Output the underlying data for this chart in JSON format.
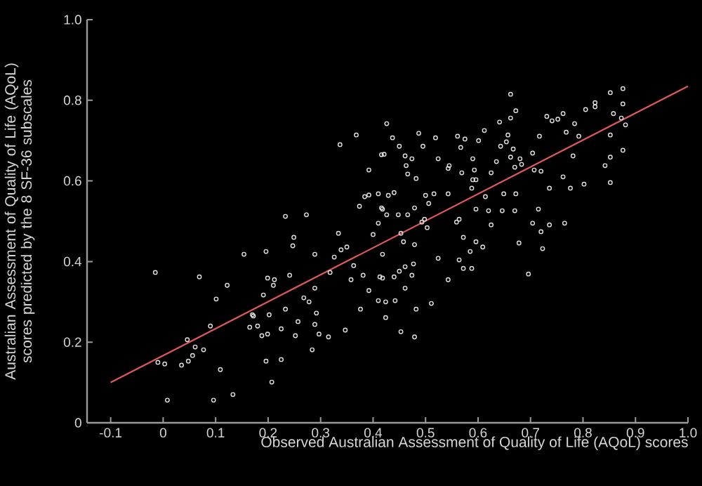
{
  "chart_data": {
    "type": "scatter",
    "xlabel": "Observed Australian Assessment of Quality of Life (AQoL) scores",
    "ylabel": "Australian Assessment of Quality of Life (AQoL) scores predicted by the 8 SF-36 subscales",
    "xlim": [
      -0.145,
      1.0
    ],
    "ylim": [
      0,
      1.0
    ],
    "xticks": [
      -0.1,
      0,
      0.1,
      0.2,
      0.3,
      0.4,
      0.5,
      0.6,
      0.7,
      0.8,
      0.9,
      {
        "value": 1.0,
        "label": "1.0"
      }
    ],
    "yticks": [
      0,
      0.2,
      0.4,
      0.6,
      0.8,
      {
        "value": 1.0,
        "label": "1.0"
      }
    ],
    "series": [
      {
        "marker": "circle",
        "color": "#e0e0e0",
        "x": [
          0.368,
          0.337,
          0.392,
          0.416,
          0.384,
          0.392,
          0.41,
          0.374,
          0.416,
          0.41,
          0.233,
          0.273,
          0.249,
          0.247,
          0.154,
          0.196,
          0.289,
          0.334,
          0.35,
          0.339,
          0.326,
          0.4,
          0.363,
          -0.015,
          0.069,
          0.122,
          0.101,
          0.09,
          0.046,
          0.061,
          0.077,
          0.056,
          0.048,
          0.035,
          0.003,
          -0.01,
          0.109,
          0.008,
          0.096,
          0.133,
          0.207,
          0.196,
          0.225,
          0.199,
          0.212,
          0.21,
          0.241,
          0.191,
          0.17,
          0.172,
          0.202,
          0.165,
          0.18,
          0.188,
          0.199,
          0.233,
          0.225,
          0.252,
          0.257,
          0.268,
          0.278,
          0.289,
          0.292,
          0.289,
          0.297,
          0.315,
          0.284,
          0.347,
          0.376,
          0.318,
          0.358,
          0.381,
          0.392,
          0.41,
          0.413,
          0.524,
          0.564,
          0.572,
          0.588,
          0.696,
          0.543,
          0.511,
          0.482,
          0.453,
          0.479,
          0.424,
          0.442,
          0.424,
          0.461,
          0.44,
          0.45,
          0.461,
          0.477,
          0.474,
          0.418,
          0.662,
          0.672,
          0.662,
          0.426,
          0.437,
          0.487,
          0.519,
          0.495,
          0.561,
          0.575,
          0.567,
          0.601,
          0.612,
          0.641,
          0.421,
          0.45,
          0.461,
          0.474,
          0.463,
          0.466,
          0.482,
          0.543,
          0.545,
          0.569,
          0.59,
          0.593,
          0.59,
          0.635,
          0.625,
          0.643,
          0.657,
          0.654,
          0.667,
          0.662,
          0.68,
          0.683,
          0.67,
          0.704,
          0.707,
          0.72,
          0.717,
          0.731,
          0.741,
          0.752,
          0.762,
          0.768,
          0.784,
          0.792,
          0.781,
          0.762,
          0.802,
          0.776,
          0.736,
          0.805,
          0.823,
          0.823,
          0.852,
          0.876,
          0.876,
          0.858,
          0.873,
          0.881,
          0.852,
          0.876,
          0.852,
          0.842,
          0.852,
          0.715,
          0.765,
          0.736,
          0.72,
          0.704,
          0.723,
          0.678,
          0.625,
          0.596,
          0.62,
          0.646,
          0.67,
          0.672,
          0.649,
          0.614,
          0.596,
          0.588,
          0.543,
          0.516,
          0.5,
          0.506,
          0.498,
          0.479,
          0.466,
          0.448,
          0.426,
          0.418,
          0.429,
          0.44,
          0.564,
          0.559,
          0.572,
          0.596,
          0.609,
          0.585,
          0.479,
          0.458,
          0.418,
          0.503,
          0.493,
          0.453,
          0.524
        ],
        "values": [
          0.714,
          0.69,
          0.627,
          0.665,
          0.561,
          0.565,
          0.568,
          0.537,
          0.533,
          0.495,
          0.512,
          0.516,
          0.46,
          0.439,
          0.418,
          0.425,
          0.418,
          0.47,
          0.436,
          0.429,
          0.411,
          0.467,
          0.39,
          0.373,
          0.362,
          0.341,
          0.307,
          0.24,
          0.206,
          0.188,
          0.181,
          0.167,
          0.153,
          0.143,
          0.146,
          0.15,
          0.132,
          0.056,
          0.056,
          0.07,
          0.101,
          0.153,
          0.157,
          0.359,
          0.355,
          0.341,
          0.366,
          0.317,
          0.268,
          0.265,
          0.268,
          0.237,
          0.24,
          0.216,
          0.22,
          0.282,
          0.233,
          0.216,
          0.251,
          0.31,
          0.3,
          0.334,
          0.272,
          0.244,
          0.22,
          0.213,
          0.181,
          0.23,
          0.282,
          0.373,
          0.355,
          0.366,
          0.328,
          0.303,
          0.362,
          0.408,
          0.404,
          0.383,
          0.383,
          0.369,
          0.355,
          0.296,
          0.282,
          0.226,
          0.213,
          0.261,
          0.303,
          0.3,
          0.334,
          0.362,
          0.376,
          0.387,
          0.394,
          0.366,
          0.359,
          0.815,
          0.774,
          0.756,
          0.742,
          0.707,
          0.718,
          0.707,
          0.686,
          0.711,
          0.704,
          0.683,
          0.7,
          0.725,
          0.746,
          0.666,
          0.686,
          0.662,
          0.655,
          0.638,
          0.617,
          0.606,
          0.631,
          0.638,
          0.62,
          0.655,
          0.627,
          0.603,
          0.648,
          0.62,
          0.686,
          0.714,
          0.697,
          0.679,
          0.659,
          0.655,
          0.641,
          0.634,
          0.669,
          0.627,
          0.624,
          0.711,
          0.76,
          0.749,
          0.753,
          0.767,
          0.721,
          0.742,
          0.711,
          0.662,
          0.61,
          0.592,
          0.582,
          0.582,
          0.777,
          0.794,
          0.784,
          0.819,
          0.829,
          0.791,
          0.767,
          0.756,
          0.739,
          0.714,
          0.676,
          0.659,
          0.638,
          0.596,
          0.53,
          0.495,
          0.491,
          0.474,
          0.495,
          0.432,
          0.446,
          0.491,
          0.53,
          0.526,
          0.526,
          0.526,
          0.568,
          0.568,
          0.561,
          0.603,
          0.582,
          0.568,
          0.568,
          0.564,
          0.544,
          0.505,
          0.533,
          0.516,
          0.516,
          0.516,
          0.53,
          0.564,
          0.571,
          0.505,
          0.498,
          0.46,
          0.449,
          0.436,
          0.425,
          0.442,
          0.449,
          0.418,
          0.484,
          0.498,
          0.47,
          0.655
        ]
      },
      {
        "type": "line",
        "color": "#e05a5a",
        "x": [
          -0.1,
          1.0
        ],
        "values": [
          0.1,
          0.835
        ]
      }
    ]
  }
}
